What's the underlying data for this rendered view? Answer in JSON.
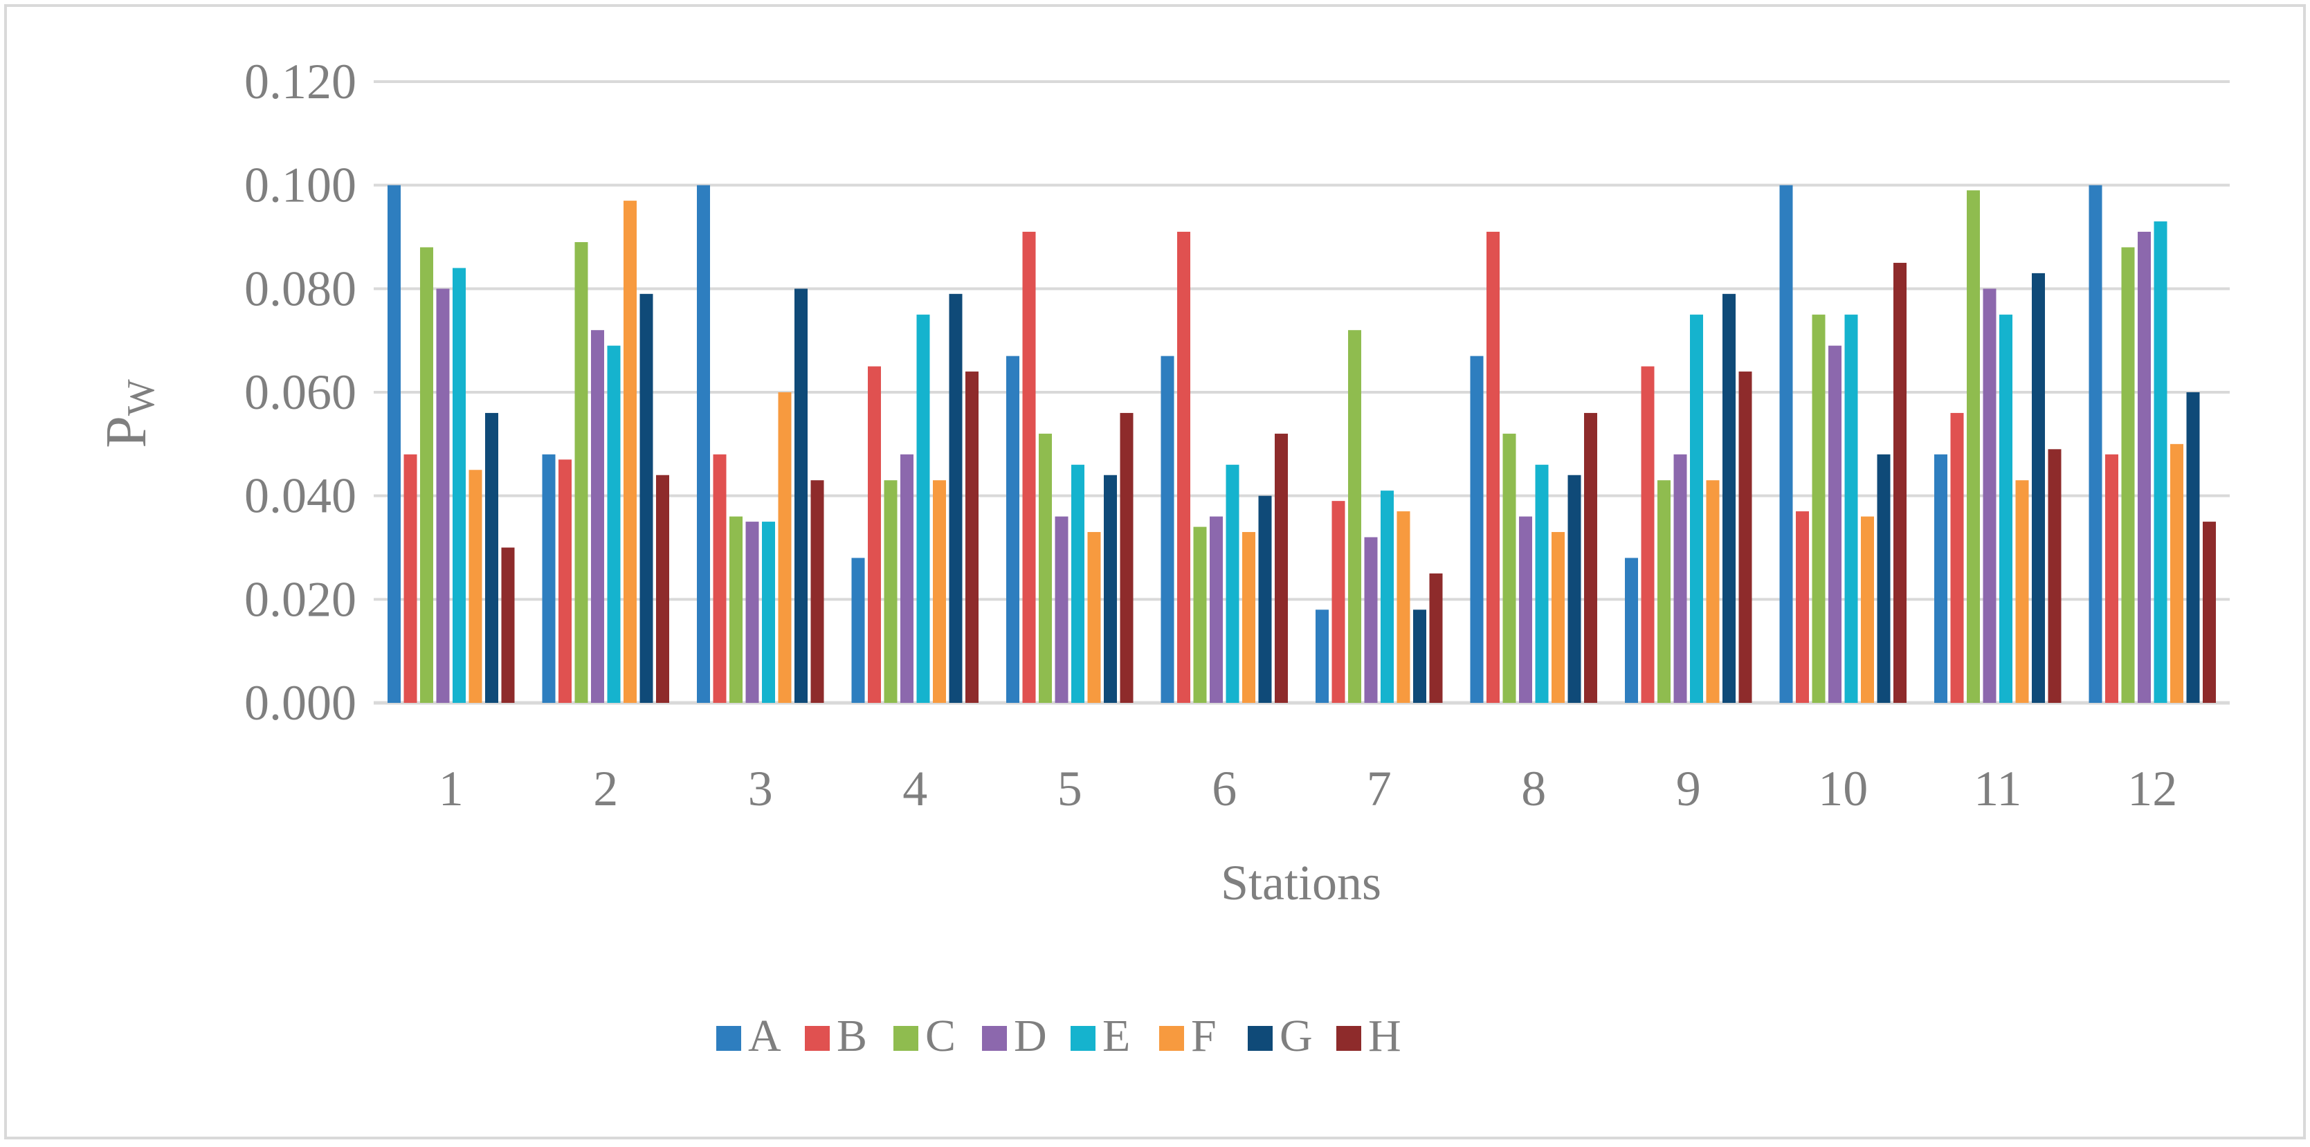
{
  "chart_data": {
    "type": "bar",
    "title": "",
    "xlabel": "Stations",
    "ylabel": "P",
    "ylabel_sub": "W",
    "ylim": [
      0,
      0.12
    ],
    "yticks": [
      "0.000",
      "0.020",
      "0.040",
      "0.060",
      "0.080",
      "0.100",
      "0.120"
    ],
    "ytick_values": [
      0,
      0.02,
      0.04,
      0.06,
      0.08,
      0.1,
      0.12
    ],
    "grid": true,
    "legend_position": "bottom",
    "categories": [
      "1",
      "2",
      "3",
      "4",
      "5",
      "6",
      "7",
      "8",
      "9",
      "10",
      "11",
      "12"
    ],
    "series": [
      {
        "name": "A",
        "color": "#2e7ebf",
        "values": [
          0.1,
          0.048,
          0.1,
          0.028,
          0.067,
          0.067,
          0.018,
          0.067,
          0.028,
          0.1,
          0.048,
          0.1
        ]
      },
      {
        "name": "B",
        "color": "#e05150",
        "values": [
          0.048,
          0.047,
          0.048,
          0.065,
          0.091,
          0.091,
          0.039,
          0.091,
          0.065,
          0.037,
          0.056,
          0.048
        ]
      },
      {
        "name": "C",
        "color": "#8fbc4f",
        "values": [
          0.088,
          0.089,
          0.036,
          0.043,
          0.052,
          0.034,
          0.072,
          0.052,
          0.043,
          0.075,
          0.099,
          0.088
        ]
      },
      {
        "name": "D",
        "color": "#8c68ad",
        "values": [
          0.08,
          0.072,
          0.035,
          0.048,
          0.036,
          0.036,
          0.032,
          0.036,
          0.048,
          0.069,
          0.08,
          0.091
        ]
      },
      {
        "name": "E",
        "color": "#15b3ce",
        "values": [
          0.084,
          0.069,
          0.035,
          0.075,
          0.046,
          0.046,
          0.041,
          0.046,
          0.075,
          0.075,
          0.075,
          0.093
        ]
      },
      {
        "name": "F",
        "color": "#f79a3f",
        "values": [
          0.045,
          0.097,
          0.06,
          0.043,
          0.033,
          0.033,
          0.037,
          0.033,
          0.043,
          0.036,
          0.043,
          0.05
        ]
      },
      {
        "name": "G",
        "color": "#0f4a78",
        "values": [
          0.056,
          0.079,
          0.08,
          0.079,
          0.044,
          0.04,
          0.018,
          0.044,
          0.079,
          0.048,
          0.083,
          0.06
        ]
      },
      {
        "name": "H",
        "color": "#8e2b2b",
        "values": [
          0.03,
          0.044,
          0.043,
          0.064,
          0.056,
          0.052,
          0.025,
          0.056,
          0.064,
          0.085,
          0.049,
          0.035
        ]
      }
    ]
  }
}
